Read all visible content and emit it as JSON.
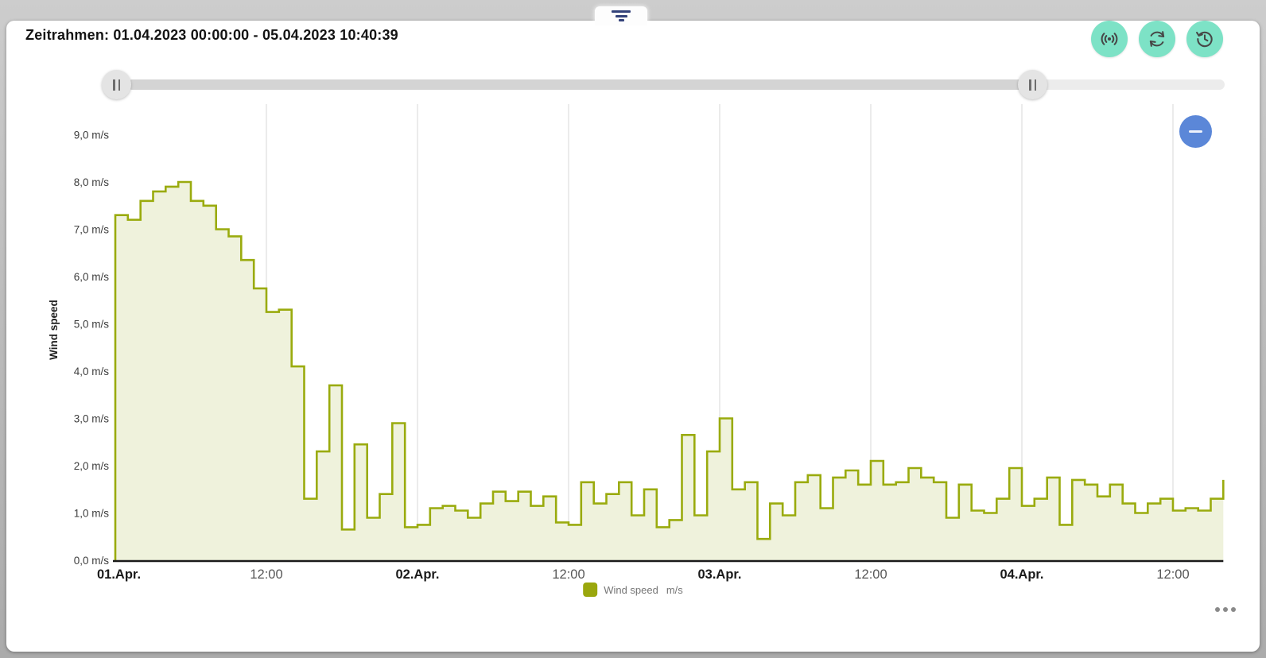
{
  "header": {
    "title": "Zeitrahmen: 01.04.2023 00:00:00 - 05.04.2023 10:40:39"
  },
  "toolbar": {
    "button_color": "#7de2c6",
    "buttons": [
      {
        "name": "live-updates",
        "icon": "broadcast-icon"
      },
      {
        "name": "refresh",
        "icon": "refresh-icon"
      },
      {
        "name": "history",
        "icon": "history-icon"
      }
    ]
  },
  "filter": {
    "icon": "filter-icon",
    "color": "#33427a"
  },
  "range_slider": {
    "handle_glyph": "||"
  },
  "zoom_out": {
    "label": "−",
    "color": "#5b87d8"
  },
  "more_menu": {
    "icon": "ellipsis-icon"
  },
  "chart_data": {
    "type": "area",
    "subtype": "step-line",
    "title": "",
    "xlabel": "",
    "ylabel": "Wind speed",
    "unit": "m/s",
    "ylim": [
      0,
      9.65
    ],
    "grid": true,
    "line_color": "#9aab0e",
    "fill_color": "#eff2dc",
    "axis_color": "#1a1a1a",
    "grid_color": "#e0e0e0",
    "legend": {
      "label": "Wind speed",
      "unit": "m/s",
      "position": "bottom-center",
      "swatch_color": "#9aa70d"
    },
    "y_ticks": [
      "0,0 m/s",
      "1,0 m/s",
      "2,0 m/s",
      "3,0 m/s",
      "4,0 m/s",
      "5,0 m/s",
      "6,0 m/s",
      "7,0 m/s",
      "8,0 m/s",
      "9,0 m/s"
    ],
    "x_ticks": [
      {
        "label": "01.Apr.",
        "bold": true
      },
      {
        "label": "12:00",
        "bold": false
      },
      {
        "label": "02.Apr.",
        "bold": true
      },
      {
        "label": "12:00",
        "bold": false
      },
      {
        "label": "03.Apr.",
        "bold": true
      },
      {
        "label": "12:00",
        "bold": false
      },
      {
        "label": "04.Apr.",
        "bold": true
      },
      {
        "label": "12:00",
        "bold": false
      }
    ],
    "x_start": "01.Apr. 00:00",
    "x_step_hours": 1,
    "values": [
      7.3,
      7.2,
      7.6,
      7.8,
      7.9,
      8.0,
      7.6,
      7.5,
      7.0,
      6.85,
      6.35,
      5.75,
      5.25,
      5.3,
      4.1,
      1.3,
      2.3,
      3.7,
      0.65,
      2.45,
      0.9,
      1.4,
      2.9,
      0.7,
      0.75,
      1.1,
      1.15,
      1.05,
      0.9,
      1.2,
      1.45,
      1.25,
      1.45,
      1.15,
      1.35,
      0.8,
      0.75,
      1.65,
      1.2,
      1.4,
      1.65,
      0.95,
      1.5,
      0.7,
      0.85,
      2.65,
      0.95,
      2.3,
      3.0,
      1.5,
      1.65,
      0.45,
      1.2,
      0.95,
      1.65,
      1.8,
      1.1,
      1.75,
      1.9,
      1.6,
      2.1,
      1.6,
      1.65,
      1.95,
      1.75,
      1.65,
      0.9,
      1.6,
      1.05,
      1.0,
      1.3,
      1.95,
      1.15,
      1.3,
      1.75,
      0.75,
      1.7,
      1.6,
      1.35,
      1.6,
      1.2,
      1.0,
      1.2,
      1.3,
      1.05,
      1.1,
      1.05,
      1.3
    ],
    "end_value": 1.7
  }
}
